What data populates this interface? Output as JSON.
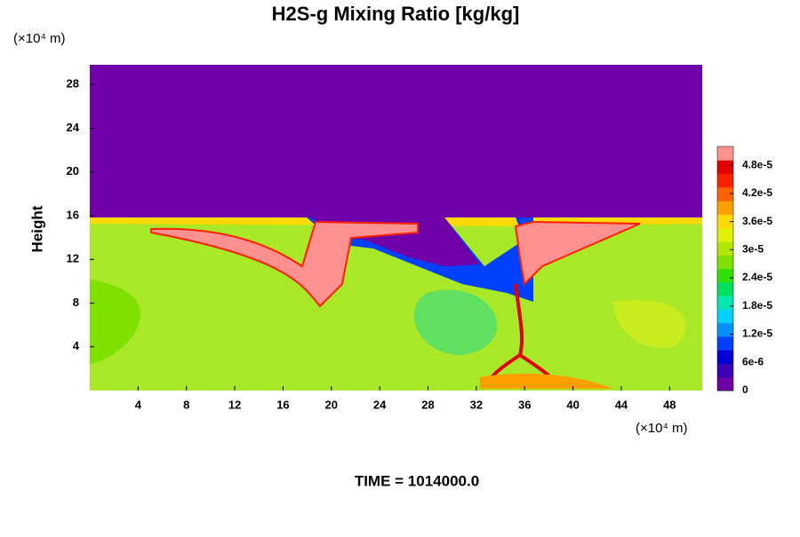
{
  "chart_data": {
    "type": "contour",
    "title": "H2S-g Mixing Ratio [kg/kg]",
    "ylabel": "Height",
    "y_unit": "(×10⁴ m)",
    "x_unit": "(×10⁴ m)",
    "annotation": "TIME = 1014000.0",
    "xlim": [
      0,
      50.7
    ],
    "xticks": [
      4,
      8,
      12,
      16,
      20,
      24,
      28,
      32,
      36,
      40,
      44,
      48
    ],
    "ylim": [
      0,
      29.8
    ],
    "yticks": [
      4,
      8,
      12,
      16,
      20,
      24,
      28
    ],
    "clim": [
      0,
      5.2e-05
    ],
    "cticks": [
      0,
      {
        "value": 6e-06,
        "label": "6e-6"
      },
      {
        "value": 1.2e-05,
        "label": "1.2e-5"
      },
      {
        "value": 1.8e-05,
        "label": "1.8e-5"
      },
      {
        "value": 2.4e-05,
        "label": "2.4e-5"
      },
      {
        "value": 3e-05,
        "label": "3e-5"
      },
      {
        "value": 3.6e-05,
        "label": "3.6e-5"
      },
      {
        "value": 4.2e-05,
        "label": "4.2e-5"
      },
      {
        "value": 4.8e-05,
        "label": "4.8e-5"
      }
    ],
    "colormap": [
      "#7000a8",
      "#3a00b8",
      "#0000d8",
      "#0040ff",
      "#0090ff",
      "#00d0ff",
      "#00e8b0",
      "#00e060",
      "#30e000",
      "#80e000",
      "#b0e800",
      "#e0f000",
      "#ffd800",
      "#ffa000",
      "#ff6000",
      "#ff2000",
      "#e00000",
      "#ff9090"
    ]
  }
}
